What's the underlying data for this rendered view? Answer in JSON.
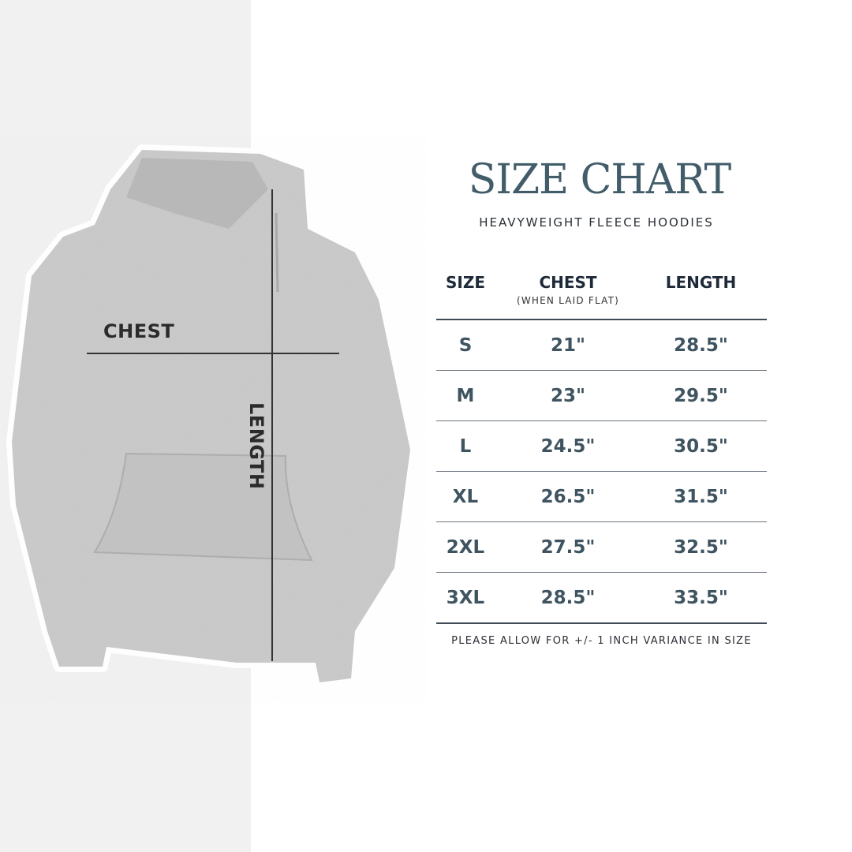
{
  "title": "SIZE CHART",
  "subtitle": "HEAVYWEIGHT FLEECE HOODIES",
  "diagram": {
    "chest_label": "CHEST",
    "length_label": "LENGTH"
  },
  "table": {
    "headers": {
      "size": "SIZE",
      "chest": "CHEST",
      "chest_note": "(WHEN LAID FLAT)",
      "length": "LENGTH"
    },
    "rows": [
      {
        "size": "S",
        "chest": "21\"",
        "length": "28.5\""
      },
      {
        "size": "M",
        "chest": "23\"",
        "length": "29.5\""
      },
      {
        "size": "L",
        "chest": "24.5\"",
        "length": "30.5\""
      },
      {
        "size": "XL",
        "chest": "26.5\"",
        "length": "31.5\""
      },
      {
        "size": "2XL",
        "chest": "27.5\"",
        "length": "32.5\""
      },
      {
        "size": "3XL",
        "chest": "28.5\"",
        "length": "33.5\""
      }
    ]
  },
  "note": "PLEASE ALLOW FOR +/- 1 INCH VARIANCE IN SIZE",
  "colors": {
    "title": "#425d69",
    "header": "#1e2a38",
    "values": "#3f5461",
    "hoodie": "#c9c9c9",
    "panel": "#f1f1f1"
  }
}
